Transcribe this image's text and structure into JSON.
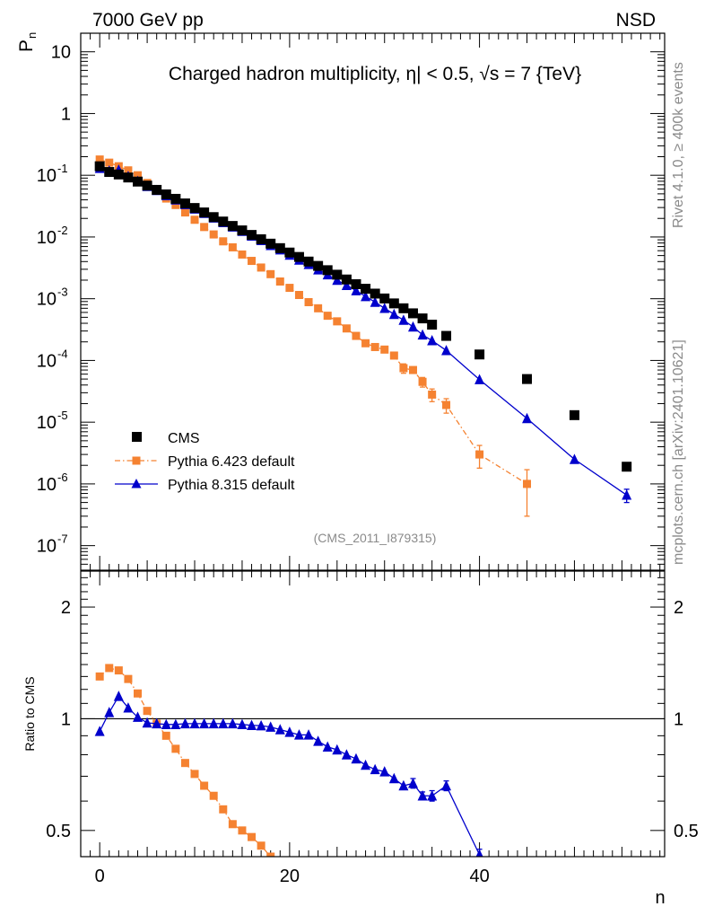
{
  "header": {
    "left": "7000 GeV pp",
    "right": "NSD"
  },
  "side_labels": {
    "rivet": "Rivet 4.1.0, ≥ 400k events",
    "mcplots": "mcplots.cern.ch [arXiv:2401.10621]"
  },
  "colors": {
    "cms": "#000000",
    "pythia6": "#f58231",
    "pythia8": "#0000cc",
    "side_text": "#8a8a8a"
  },
  "chart_data": [
    {
      "type": "scatter",
      "scale": "log",
      "title": "Charged hadron multiplicity, η| < 0.5, √s = 7 {TeV}",
      "ylabel": "P_n",
      "ylabel_main": "P",
      "ylabel_sub": "n",
      "xlabel": "n",
      "analysis_id": "(CMS_2011_I879315)",
      "xlim": [
        -2,
        59.5
      ],
      "ylim": [
        4e-08,
        20
      ],
      "y_ticks": [
        {
          "value": 10,
          "base": "10",
          "exp": ""
        },
        {
          "value": 1,
          "base": "1",
          "exp": ""
        },
        {
          "value": 0.1,
          "base": "10",
          "exp": "-1"
        },
        {
          "value": 0.01,
          "base": "10",
          "exp": "-2"
        },
        {
          "value": 0.001,
          "base": "10",
          "exp": "-3"
        },
        {
          "value": 0.0001,
          "base": "10",
          "exp": "-4"
        },
        {
          "value": 1e-05,
          "base": "10",
          "exp": "-5"
        },
        {
          "value": 1e-06,
          "base": "10",
          "exp": "-6"
        },
        {
          "value": 1e-07,
          "base": "10",
          "exp": "-7"
        }
      ],
      "legend": [
        {
          "label": "CMS",
          "marker": "square",
          "line": "none"
        },
        {
          "label": "Pythia 6.423 default",
          "marker": "square",
          "line": "dashdot"
        },
        {
          "label": "Pythia 8.315 default",
          "marker": "triangle",
          "line": "solid"
        }
      ],
      "series": [
        {
          "name": "CMS",
          "x": [
            0,
            1,
            2,
            3,
            4,
            5,
            6,
            7,
            8,
            9,
            10,
            11,
            12,
            13,
            14,
            15,
            16,
            17,
            18,
            19,
            20,
            21,
            22,
            23,
            24,
            25,
            26,
            27,
            28,
            29,
            30,
            31,
            32,
            33,
            34,
            35,
            36.5,
            40,
            45,
            50,
            55.5
          ],
          "y": [
            0.14,
            0.113,
            0.103,
            0.092,
            0.079,
            0.068,
            0.058,
            0.049,
            0.0415,
            0.035,
            0.0295,
            0.025,
            0.021,
            0.0178,
            0.0151,
            0.0128,
            0.0108,
            0.0092,
            0.0078,
            0.0066,
            0.0056,
            0.00475,
            0.004,
            0.0034,
            0.0029,
            0.00245,
            0.00205,
            0.00172,
            0.00145,
            0.00121,
            0.00101,
            0.00084,
            0.0007,
            0.00058,
            0.00048,
            0.00038,
            0.00025,
            0.000125,
            5e-05,
            1.3e-05,
            1.9e-06
          ]
        },
        {
          "name": "Pythia 6.423 default",
          "x": [
            0,
            1,
            2,
            3,
            4,
            5,
            6,
            7,
            8,
            9,
            10,
            11,
            12,
            13,
            14,
            15,
            16,
            17,
            18,
            19,
            20,
            21,
            22,
            23,
            24,
            25,
            26,
            27,
            28,
            29,
            30,
            31,
            32,
            33,
            34,
            35,
            36.5,
            40,
            45
          ],
          "y": [
            0.18,
            0.16,
            0.14,
            0.12,
            0.1,
            0.075,
            0.058,
            0.042,
            0.033,
            0.025,
            0.019,
            0.0145,
            0.011,
            0.0085,
            0.0068,
            0.0052,
            0.0041,
            0.0032,
            0.0025,
            0.0019,
            0.0015,
            0.00115,
            0.00088,
            0.0007,
            0.00053,
            0.00043,
            0.00033,
            0.00025,
            0.00019,
            0.000165,
            0.00015,
            0.00012,
            7.5e-05,
            7e-05,
            4.5e-05,
            2.8e-05,
            1.9e-05,
            3e-06,
            1e-06
          ],
          "err_low": [
            0,
            0,
            0,
            0,
            0,
            0,
            0,
            0,
            0,
            0,
            0,
            0,
            0,
            0,
            0,
            0,
            0,
            0,
            0,
            0,
            0,
            0,
            0,
            0,
            0,
            0,
            0,
            0,
            0,
            0,
            0,
            0,
            1.3e-05,
            0,
            8e-06,
            6.5e-06,
            5e-06,
            1.2e-06,
            7e-07
          ],
          "err_high": [
            0,
            0,
            0,
            0,
            0,
            0,
            0,
            0,
            0,
            0,
            0,
            0,
            0,
            0,
            0,
            0,
            0,
            0,
            0,
            0,
            0,
            0,
            0,
            0,
            0,
            0,
            0,
            0,
            0,
            0,
            0,
            0,
            1.3e-05,
            0,
            8e-06,
            6.5e-06,
            5e-06,
            1.2e-06,
            7e-07
          ]
        },
        {
          "name": "Pythia 8.315 default",
          "x": [
            0,
            1,
            2,
            3,
            4,
            5,
            6,
            7,
            8,
            9,
            10,
            11,
            12,
            13,
            14,
            15,
            16,
            17,
            18,
            19,
            20,
            21,
            22,
            23,
            24,
            25,
            26,
            27,
            28,
            29,
            30,
            31,
            32,
            33,
            34,
            35,
            36.5,
            40,
            45,
            50,
            55.5
          ],
          "y": [
            0.13,
            0.118,
            0.122,
            0.096,
            0.08,
            0.066,
            0.057,
            0.047,
            0.04,
            0.0337,
            0.0285,
            0.0242,
            0.0204,
            0.0172,
            0.0146,
            0.0124,
            0.0104,
            0.0088,
            0.0073,
            0.0062,
            0.0051,
            0.00425,
            0.0036,
            0.00295,
            0.00245,
            0.002,
            0.00165,
            0.00135,
            0.00109,
            0.00088,
            0.0007,
            0.00056,
            0.00045,
            0.00035,
            0.00026,
            0.00021,
            0.000145,
            4.9e-05,
            1.15e-05,
            2.5e-06,
            6.6e-07
          ],
          "err_low": [
            0,
            0,
            0,
            0,
            0,
            0,
            0,
            0,
            0,
            0,
            0,
            0,
            0,
            0,
            0,
            0,
            0,
            0,
            0,
            0,
            0,
            0,
            0,
            0,
            0,
            0,
            0,
            0,
            0,
            0,
            0,
            0,
            0,
            0,
            0,
            0,
            0,
            0,
            0,
            0,
            1.6e-07
          ],
          "err_high": [
            0,
            0,
            0,
            0,
            0,
            0,
            0,
            0,
            0,
            0,
            0,
            0,
            0,
            0,
            0,
            0,
            0,
            0,
            0,
            0,
            0,
            0,
            0,
            0,
            0,
            0,
            0,
            0,
            0,
            0,
            0,
            0,
            0,
            0,
            0,
            0,
            0,
            0,
            0,
            0,
            1.6e-07
          ]
        }
      ]
    },
    {
      "type": "line",
      "scale": "log",
      "ylabel": "Ratio to CMS",
      "xlim": [
        -2,
        59.5
      ],
      "ylim": [
        0.425,
        2.5
      ],
      "reference_line": 1,
      "y_ticks": [
        {
          "value": 2,
          "label": "2"
        },
        {
          "value": 1,
          "label": "1"
        },
        {
          "value": 0.5,
          "label": "0.5"
        }
      ],
      "x_ticks": [
        {
          "value": 0,
          "label": "0"
        },
        {
          "value": 20,
          "label": "20"
        },
        {
          "value": 40,
          "label": "40"
        }
      ],
      "series": [
        {
          "name": "Pythia 6.423 default",
          "x": [
            0,
            1,
            2,
            3,
            4,
            5,
            6,
            7,
            8,
            9,
            10,
            11,
            12,
            13,
            14,
            15,
            16,
            17,
            18
          ],
          "y": [
            1.3,
            1.37,
            1.35,
            1.28,
            1.17,
            1.05,
            0.97,
            0.9,
            0.83,
            0.76,
            0.71,
            0.66,
            0.62,
            0.57,
            0.52,
            0.5,
            0.48,
            0.455,
            0.425
          ]
        },
        {
          "name": "Pythia 8.315 default",
          "x": [
            0,
            1,
            2,
            3,
            4,
            5,
            6,
            7,
            8,
            9,
            10,
            11,
            12,
            13,
            14,
            15,
            16,
            17,
            18,
            19,
            20,
            21,
            22,
            23,
            24,
            25,
            26,
            27,
            28,
            29,
            30,
            31,
            32,
            33,
            34,
            35,
            36.5,
            40
          ],
          "y": [
            0.925,
            1.04,
            1.15,
            1.07,
            1.01,
            0.975,
            0.97,
            0.965,
            0.965,
            0.97,
            0.97,
            0.97,
            0.97,
            0.97,
            0.97,
            0.965,
            0.96,
            0.958,
            0.95,
            0.935,
            0.92,
            0.905,
            0.905,
            0.87,
            0.84,
            0.825,
            0.8,
            0.78,
            0.75,
            0.73,
            0.72,
            0.69,
            0.66,
            0.67,
            0.62,
            0.62,
            0.66,
            0.43
          ],
          "err_low": [
            0,
            0,
            0,
            0,
            0,
            0,
            0,
            0,
            0,
            0,
            0,
            0,
            0,
            0,
            0,
            0,
            0,
            0,
            0,
            0,
            0,
            0,
            0,
            0,
            0,
            0,
            0,
            0,
            0,
            0,
            0,
            0,
            0,
            0.02,
            0.015,
            0.02,
            0.02,
            0.015
          ],
          "err_high": [
            0,
            0,
            0,
            0,
            0,
            0,
            0,
            0,
            0,
            0,
            0,
            0,
            0,
            0,
            0,
            0,
            0,
            0,
            0,
            0,
            0,
            0,
            0,
            0,
            0,
            0,
            0,
            0,
            0,
            0,
            0,
            0,
            0,
            0.02,
            0.015,
            0.02,
            0.02,
            0.015
          ]
        }
      ]
    }
  ]
}
